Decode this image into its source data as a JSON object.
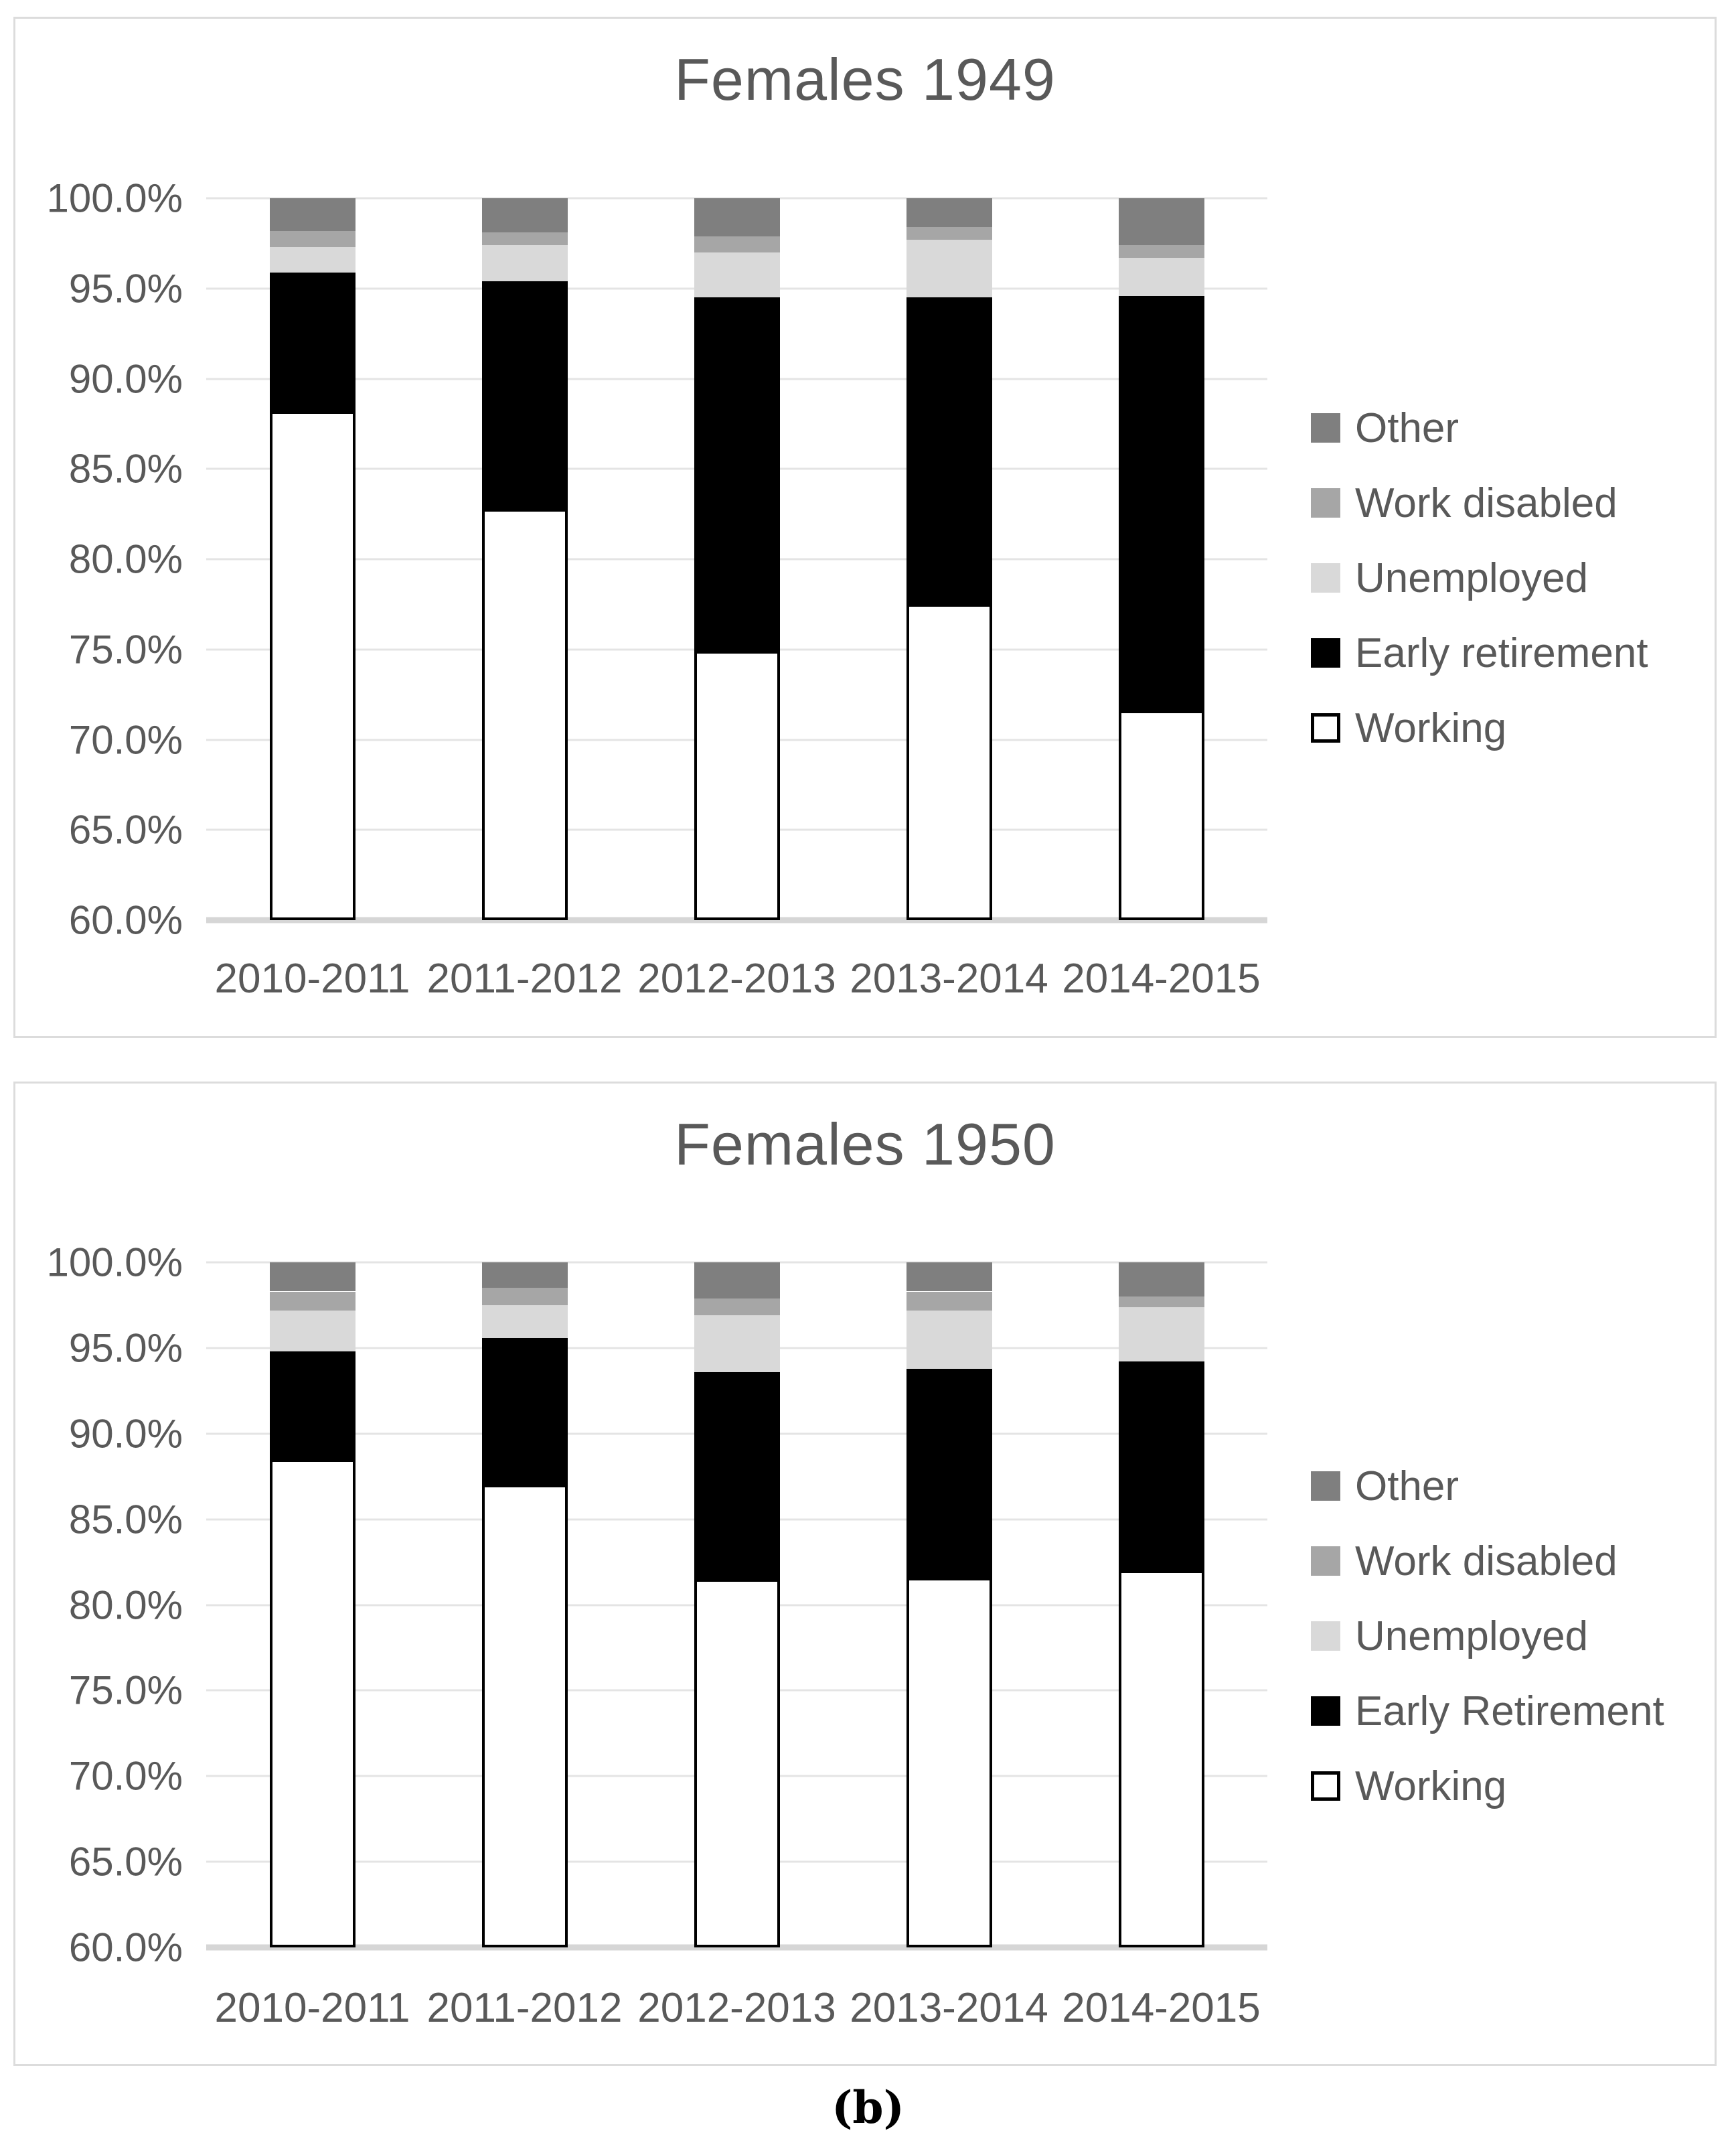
{
  "figure": {
    "caption": "(b)",
    "text_color": "#595959",
    "gridline_color": "#e4e4e4",
    "axis_line_color": "#d6d6d6",
    "border_color": "#dcdcdc"
  },
  "chart_data": [
    {
      "type": "bar",
      "stacked": true,
      "title": "Females 1949",
      "categories": [
        "2010-2011",
        "2011-2012",
        "2012-2013",
        "2013-2014",
        "2014-2015"
      ],
      "series": [
        {
          "name": "Working",
          "color": "#ffffff",
          "values": [
            88.2,
            82.8,
            74.9,
            77.5,
            71.6
          ]
        },
        {
          "name": "Early retirement",
          "color": "#000000",
          "values": [
            7.7,
            12.6,
            19.6,
            17.0,
            23.0
          ]
        },
        {
          "name": "Unemployed",
          "color": "#d9d9d9",
          "values": [
            1.4,
            2.0,
            2.5,
            3.2,
            2.1
          ]
        },
        {
          "name": "Work disabled",
          "color": "#a6a6a6",
          "values": [
            0.9,
            0.7,
            0.9,
            0.7,
            0.7
          ]
        },
        {
          "name": "Other",
          "color": "#7f7f7f",
          "values": [
            1.8,
            1.9,
            2.1,
            1.6,
            2.6
          ]
        }
      ],
      "legend_order": [
        "Other",
        "Work disabled",
        "Unemployed",
        "Early retirement",
        "Working"
      ],
      "ylim": [
        60,
        100
      ],
      "yticks": [
        "100.0%",
        "95.0%",
        "90.0%",
        "85.0%",
        "80.0%",
        "75.0%",
        "70.0%",
        "65.0%",
        "60.0%"
      ],
      "xlabel": "",
      "ylabel": "",
      "grid": true,
      "legend_position": "right"
    },
    {
      "type": "bar",
      "stacked": true,
      "title": "Females 1950",
      "categories": [
        "2010-2011",
        "2011-2012",
        "2012-2013",
        "2013-2014",
        "2014-2015"
      ],
      "series": [
        {
          "name": "Working",
          "color": "#ffffff",
          "values": [
            88.5,
            87.0,
            81.5,
            81.6,
            82.0
          ]
        },
        {
          "name": "Early Retirement",
          "color": "#000000",
          "values": [
            6.3,
            8.6,
            12.1,
            12.2,
            12.2
          ]
        },
        {
          "name": "Unemployed",
          "color": "#d9d9d9",
          "values": [
            2.4,
            1.9,
            3.3,
            3.4,
            3.2
          ]
        },
        {
          "name": "Work disabled",
          "color": "#a6a6a6",
          "values": [
            1.1,
            1.0,
            1.0,
            1.1,
            0.6
          ]
        },
        {
          "name": "Other",
          "color": "#7f7f7f",
          "values": [
            1.7,
            1.5,
            2.1,
            1.7,
            2.0
          ]
        }
      ],
      "legend_order": [
        "Other",
        "Work disabled",
        "Unemployed",
        "Early Retirement",
        "Working"
      ],
      "ylim": [
        60,
        100
      ],
      "yticks": [
        "100.0%",
        "95.0%",
        "90.0%",
        "85.0%",
        "80.0%",
        "75.0%",
        "70.0%",
        "65.0%",
        "60.0%"
      ],
      "xlabel": "",
      "ylabel": "",
      "grid": true,
      "legend_position": "right"
    }
  ]
}
